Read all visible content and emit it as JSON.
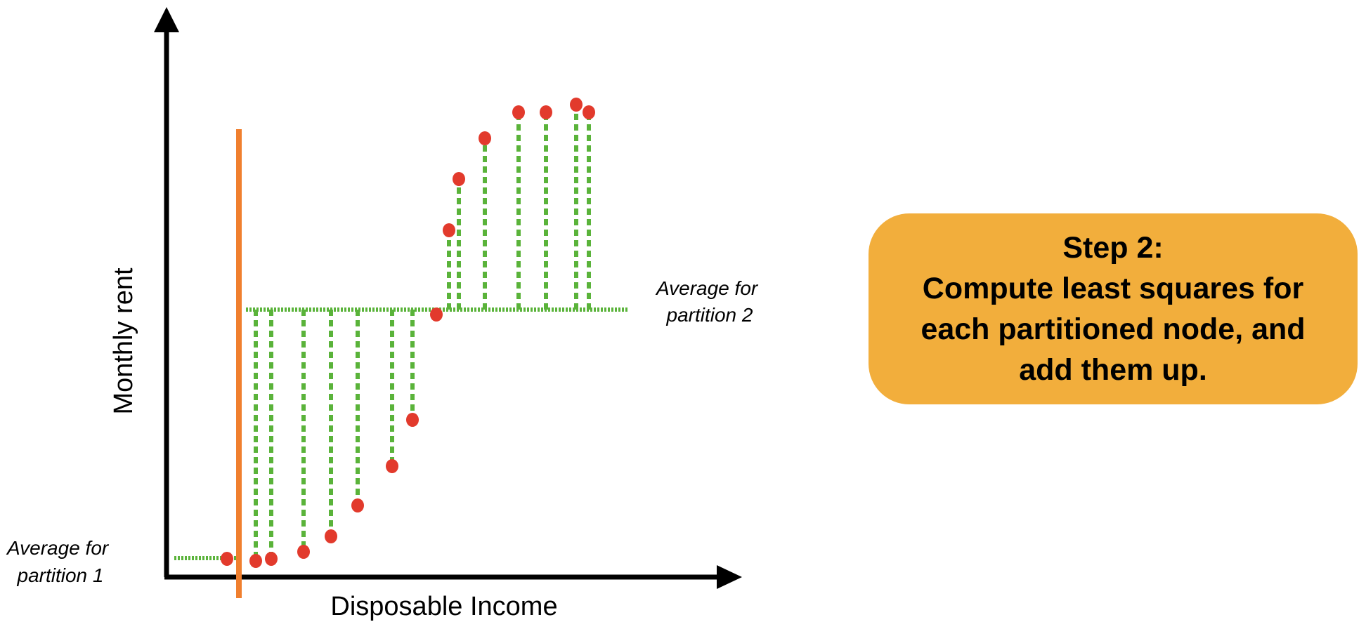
{
  "axes": {
    "x_label": "Disposable Income",
    "y_label": "Monthly rent"
  },
  "partition_labels": {
    "partition1": [
      "Average for",
      "partition 1"
    ],
    "partition2": [
      "Average for",
      "partition 2"
    ]
  },
  "step_box": {
    "lines": [
      "Step 2:",
      "Compute least squares for",
      "each partitioned node, and",
      "add them up."
    ]
  },
  "colors": {
    "points": "#E23A2C",
    "residuals": "#5AB33A",
    "split_line": "#F07F2E",
    "axes": "#000000",
    "step_box": "#F2AE3C"
  }
}
